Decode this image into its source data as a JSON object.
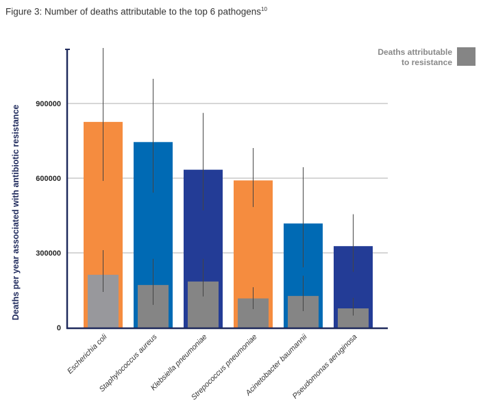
{
  "title": "Figure 3: Number of deaths attributable to the top 6 pathogens",
  "title_sup": "10",
  "chart_data": {
    "type": "bar",
    "title": "Figure 3: Number of deaths attributable to the top 6 pathogens",
    "xlabel": "",
    "ylabel": "Deaths per year associated with antibiotic resistance",
    "ylim": [
      0,
      1150000
    ],
    "yticks": [
      0,
      300000,
      600000,
      900000
    ],
    "ytick_labels": [
      "0",
      "300000",
      "600000",
      "900000"
    ],
    "grid": true,
    "legend_position": "top-right",
    "categories": [
      "Escherichia coli",
      "Staphylococcus aureus",
      "Klebsiella pneumoniae",
      "Strepococcus pneumoniae",
      "Acinetobacter baumannii",
      "Pseudomonas aeruginosa"
    ],
    "bar_colors": [
      "#f58c3f",
      "#006ab4",
      "#233c96",
      "#f58c3f",
      "#006ab4",
      "#233c96"
    ],
    "series": [
      {
        "values": [
          826000,
          745000,
          634000,
          591000,
          418000,
          327000
        ],
        "error_low": [
          589000,
          542000,
          471000,
          484000,
          242000,
          224000
        ],
        "error_high": [
          1123000,
          999000,
          862000,
          721000,
          644000,
          455000
        ]
      },
      {
        "name": "Deaths attributable to resistance",
        "color": "#858585",
        "values": [
          212000,
          171000,
          185000,
          117000,
          127000,
          77000
        ],
        "error_low": [
          143000,
          91000,
          125000,
          74000,
          66000,
          48000
        ],
        "error_high": [
          311000,
          276000,
          276000,
          162000,
          208000,
          119000
        ]
      }
    ],
    "legend": [
      "Deaths attributable",
      "to resistance"
    ]
  }
}
